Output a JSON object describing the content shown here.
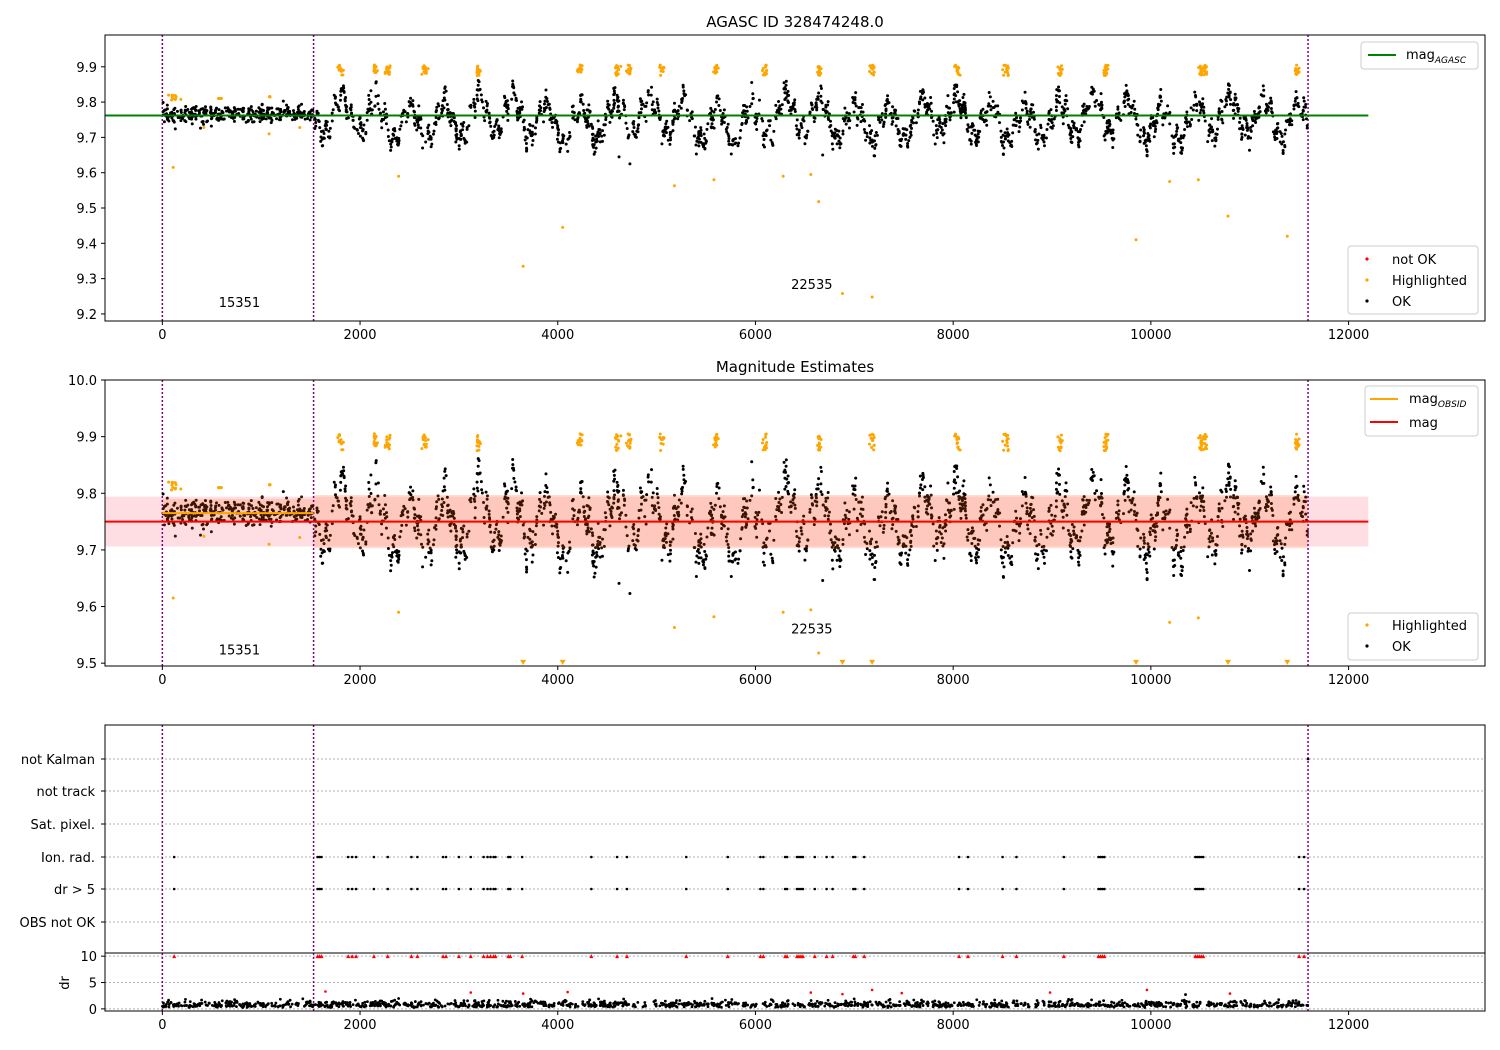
{
  "chart_data": [
    {
      "type": "scatter",
      "title": "AGASC ID 328474248.0",
      "xlim": [
        -580,
        13380
      ],
      "ylim": [
        9.18,
        9.99
      ],
      "xticks": [
        0,
        2000,
        4000,
        6000,
        8000,
        10000,
        12000
      ],
      "yticks": [
        9.2,
        9.3,
        9.4,
        9.5,
        9.6,
        9.7,
        9.8,
        9.9
      ],
      "vlines": [
        0,
        1530,
        11590
      ],
      "obsid_labels": [
        {
          "text": "15351",
          "x": 780,
          "y": 9.22
        },
        {
          "text": "22535",
          "x": 6570,
          "y": 9.27
        }
      ],
      "series": [
        {
          "name": "mag_AGASC",
          "kind": "hline",
          "y": 9.762,
          "x_range": [
            -580,
            12200
          ],
          "color": "#008000"
        },
        {
          "name": "not OK",
          "kind": "points",
          "color": "#ff0000",
          "points": []
        },
        {
          "name": "Highlighted",
          "kind": "points",
          "color": "#ffa500",
          "points": [
            [
              110,
              9.615
            ],
            [
              1080,
              9.71
            ],
            [
              2390,
              9.59
            ],
            [
              3650,
              9.335
            ],
            [
              4050,
              9.445
            ],
            [
              5180,
              9.563
            ],
            [
              5580,
              9.58
            ],
            [
              6280,
              9.59
            ],
            [
              6560,
              9.595
            ],
            [
              6640,
              9.518
            ],
            [
              6880,
              9.258
            ],
            [
              7180,
              9.248
            ],
            [
              9850,
              9.41
            ],
            [
              10190,
              9.575
            ],
            [
              10480,
              9.58
            ],
            [
              10780,
              9.477
            ],
            [
              11380,
              9.42
            ],
            [
              420,
              9.728
            ],
            [
              1390,
              9.728
            ]
          ]
        },
        {
          "name": "OK",
          "kind": "points",
          "color": "#000000",
          "points": [
            [
              4620,
              9.645
            ],
            [
              4730,
              9.625
            ],
            [
              6680,
              9.65
            ]
          ]
        }
      ],
      "legends": [
        {
          "placement": "top-right",
          "entries": [
            {
              "kind": "line",
              "color": "#008000",
              "label": "mag",
              "sub": "AGASC"
            }
          ]
        },
        {
          "placement": "bottom-right",
          "entries": [
            {
              "kind": "dot",
              "color": "#ff0000",
              "label": "not OK"
            },
            {
              "kind": "dot",
              "color": "#ffa500",
              "label": "Highlighted"
            },
            {
              "kind": "dot",
              "color": "#000000",
              "label": "OK"
            }
          ]
        }
      ]
    },
    {
      "type": "scatter",
      "title": "Magnitude Estimates",
      "xlim": [
        -580,
        13380
      ],
      "ylim": [
        9.495,
        10.0
      ],
      "xticks": [
        0,
        2000,
        4000,
        6000,
        8000,
        10000,
        12000
      ],
      "yticks": [
        9.5,
        9.6,
        9.7,
        9.8,
        9.9,
        10.0
      ],
      "vlines": [
        0,
        1530,
        11590
      ],
      "obsid_labels": [
        {
          "text": "15351",
          "x": 780,
          "y": 9.515
        },
        {
          "text": "22535",
          "x": 6570,
          "y": 9.552
        }
      ],
      "bands": [
        {
          "x_range": [
            -580,
            12200
          ],
          "y_range": [
            9.706,
            9.794
          ],
          "color": "#ffb6c1",
          "opacity": 0.45
        },
        {
          "x_range": [
            0,
            1530
          ],
          "y_range": [
            9.748,
            9.79
          ],
          "color": "#ffa07a",
          "opacity": 0.35
        },
        {
          "x_range": [
            1530,
            11590
          ],
          "y_range": [
            9.703,
            9.797
          ],
          "color": "#ffa07a",
          "opacity": 0.35
        }
      ],
      "series": [
        {
          "name": "mag_OBSID",
          "kind": "step",
          "color": "#ffa500",
          "segments": [
            [
              0,
              1530,
              9.765
            ],
            [
              1530,
              11590,
              9.75
            ]
          ]
        },
        {
          "name": "mag",
          "kind": "hline",
          "y": 9.75,
          "x_range": [
            -580,
            12200
          ],
          "color": "#ff0000"
        },
        {
          "name": "Highlighted",
          "kind": "points",
          "color": "#ffa500",
          "points": [
            [
              110,
              9.615
            ],
            [
              1080,
              9.71
            ],
            [
              2390,
              9.59
            ],
            [
              5180,
              9.563
            ],
            [
              5580,
              9.582
            ],
            [
              6280,
              9.59
            ],
            [
              6560,
              9.594
            ],
            [
              6640,
              9.518
            ],
            [
              10190,
              9.572
            ],
            [
              10480,
              9.58
            ],
            [
              420,
              9.724
            ],
            [
              1390,
              9.722
            ]
          ]
        },
        {
          "name": "OK",
          "kind": "points",
          "color": "#000000",
          "points": [
            [
              4620,
              9.641
            ],
            [
              4730,
              9.623
            ],
            [
              6680,
              9.646
            ]
          ]
        },
        {
          "name": "clipped",
          "kind": "triangles",
          "color": "#ffa500",
          "points": [
            [
              3650,
              9.497
            ],
            [
              4050,
              9.497
            ],
            [
              6880,
              9.497
            ],
            [
              7180,
              9.497
            ],
            [
              9850,
              9.497
            ],
            [
              10780,
              9.497
            ],
            [
              11380,
              9.497
            ]
          ]
        }
      ],
      "legends": [
        {
          "placement": "top-right",
          "entries": [
            {
              "kind": "line",
              "color": "#ffa500",
              "label": "mag",
              "sub": "OBSID"
            },
            {
              "kind": "line",
              "color": "#ff0000",
              "label": "mag",
              "sub": ""
            }
          ]
        },
        {
          "placement": "bottom-right",
          "entries": [
            {
              "kind": "dot",
              "color": "#ffa500",
              "label": "Highlighted"
            },
            {
              "kind": "dot",
              "color": "#000000",
              "label": "OK"
            }
          ]
        }
      ]
    },
    {
      "type": "scatter",
      "xlim": [
        -580,
        13380
      ],
      "categories": [
        "not Kalman",
        "not track",
        "Sat. pixel.",
        "Ion. rad.",
        "dr > 5",
        "OBS not OK"
      ],
      "vlines": [
        0,
        1530,
        11590
      ],
      "flag_times": [
        120,
        1570,
        1590,
        1610,
        1880,
        1920,
        1960,
        2140,
        2280,
        2520,
        2580,
        2840,
        2870,
        3000,
        3120,
        3250,
        3290,
        3320,
        3350,
        3370,
        3500,
        3520,
        3640,
        4340,
        4600,
        4700,
        5300,
        5720,
        6050,
        6080,
        6300,
        6320,
        6420,
        6440,
        6460,
        6480,
        6600,
        6720,
        6780,
        6990,
        7010,
        7100,
        8060,
        8150,
        8500,
        8640,
        9120,
        9470,
        9490,
        9510,
        9530,
        10450,
        10470,
        10490,
        10510,
        10530,
        11500,
        11550
      ]
    },
    {
      "type": "scatter",
      "xlim": [
        -580,
        13380
      ],
      "ylim": [
        -0.4,
        10.6
      ],
      "xticks": [
        0,
        2000,
        4000,
        6000,
        8000,
        10000,
        12000
      ],
      "yticks": [
        0,
        5,
        10
      ],
      "ylabel": "dr",
      "vlines": [
        0,
        1530,
        11590
      ],
      "series": [
        {
          "name": "dr > 5",
          "kind": "triangles",
          "color": "#ff0000",
          "y": 10
        },
        {
          "name": "outliers",
          "kind": "points",
          "color": "#ff0000",
          "points": [
            [
              1650,
              3.3
            ],
            [
              3120,
              3.1
            ],
            [
              3650,
              2.9
            ],
            [
              4100,
              3.2
            ],
            [
              6560,
              3.1
            ],
            [
              6880,
              2.8
            ],
            [
              7180,
              3.6
            ],
            [
              7480,
              3.0
            ],
            [
              8980,
              3.1
            ],
            [
              9960,
              3.6
            ],
            [
              10800,
              2.9
            ]
          ]
        }
      ]
    }
  ]
}
